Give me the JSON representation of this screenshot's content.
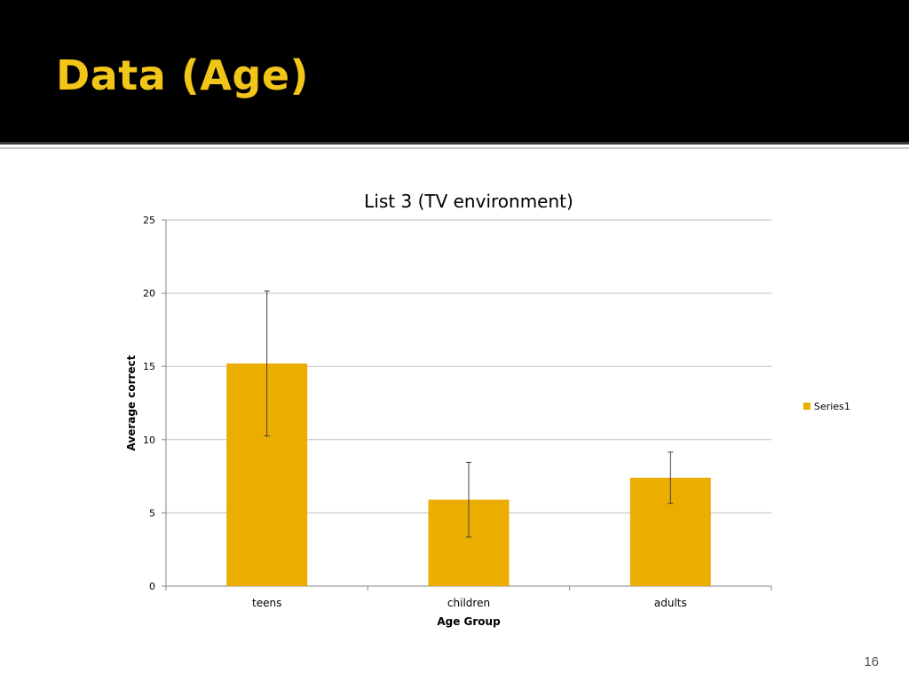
{
  "slide": {
    "title": "Data (Age)",
    "number": "16"
  },
  "colors": {
    "title_band": "#000000",
    "title_text": "#f2c618",
    "bar_fill": "#eaad00",
    "gridline": "#bfbfbf",
    "axis": "#868686",
    "error_bar": "#404040"
  },
  "chart_data": {
    "type": "bar",
    "title": "List 3 (TV environment)",
    "xlabel": "Age Group",
    "ylabel": "Average correct",
    "categories": [
      "teens",
      "children",
      "adults"
    ],
    "series": [
      {
        "name": "Series1",
        "values": [
          15.2,
          5.9,
          7.4
        ],
        "error": [
          4.95,
          2.55,
          1.75
        ]
      }
    ],
    "ylim": [
      0,
      25
    ],
    "yticks": [
      0,
      5,
      10,
      15,
      20,
      25
    ],
    "grid": true,
    "legend": "right"
  }
}
